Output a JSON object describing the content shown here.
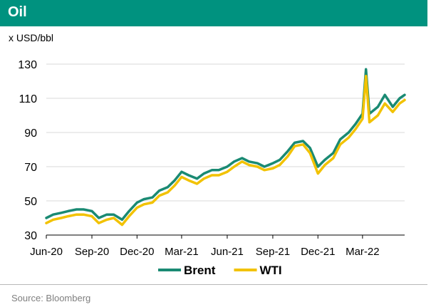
{
  "header": {
    "title": "Oil"
  },
  "unit_label": "x USD/bbl",
  "source": "Source: Bloomberg",
  "colors": {
    "header_bg": "#00927f",
    "brent": "#1a8a73",
    "wti": "#f2c200"
  },
  "chart_data": {
    "type": "line",
    "title": "Oil",
    "ylabel": "x USD/bbl",
    "xlabel": "",
    "ylim": [
      30,
      130
    ],
    "yticks": [
      30,
      50,
      70,
      90,
      110,
      130
    ],
    "xlim": [
      "2020-06-01",
      "2022-05-25"
    ],
    "xticks": [
      {
        "date": "2020-06-01",
        "label": "Jun-20"
      },
      {
        "date": "2020-09-01",
        "label": "Sep-20"
      },
      {
        "date": "2020-12-01",
        "label": "Dec-20"
      },
      {
        "date": "2021-03-01",
        "label": "Mar-21"
      },
      {
        "date": "2021-06-01",
        "label": "Jun-21"
      },
      {
        "date": "2021-09-01",
        "label": "Sep-21"
      },
      {
        "date": "2021-12-01",
        "label": "Dec-21"
      },
      {
        "date": "2022-03-01",
        "label": "Mar-22"
      }
    ],
    "grid": "horizontal",
    "legend_position": "bottom-center",
    "x": [
      "2020-06-01",
      "2020-06-15",
      "2020-07-01",
      "2020-07-15",
      "2020-08-01",
      "2020-08-15",
      "2020-09-01",
      "2020-09-15",
      "2020-10-01",
      "2020-10-15",
      "2020-11-01",
      "2020-11-15",
      "2020-12-01",
      "2020-12-15",
      "2021-01-01",
      "2021-01-15",
      "2021-02-01",
      "2021-02-15",
      "2021-03-01",
      "2021-03-15",
      "2021-04-01",
      "2021-04-15",
      "2021-05-01",
      "2021-05-15",
      "2021-06-01",
      "2021-06-15",
      "2021-07-01",
      "2021-07-15",
      "2021-08-01",
      "2021-08-15",
      "2021-09-01",
      "2021-09-15",
      "2021-10-01",
      "2021-10-15",
      "2021-11-01",
      "2021-11-15",
      "2021-12-01",
      "2021-12-15",
      "2022-01-01",
      "2022-01-15",
      "2022-02-01",
      "2022-02-15",
      "2022-03-01",
      "2022-03-08",
      "2022-03-15",
      "2022-04-01",
      "2022-04-15",
      "2022-05-01",
      "2022-05-15",
      "2022-05-25"
    ],
    "series": [
      {
        "name": "Brent",
        "values": [
          40,
          42,
          43,
          44,
          45,
          45,
          44,
          40,
          42,
          42,
          39,
          44,
          49,
          51,
          52,
          56,
          58,
          62,
          67,
          65,
          63,
          66,
          68,
          68,
          70,
          73,
          75,
          73,
          72,
          70,
          72,
          74,
          79,
          84,
          85,
          81,
          70,
          74,
          78,
          86,
          90,
          95,
          101,
          127,
          101,
          105,
          112,
          105,
          110,
          112
        ]
      },
      {
        "name": "WTI",
        "values": [
          37,
          39,
          40,
          41,
          42,
          42,
          41,
          37,
          39,
          40,
          36,
          41,
          46,
          48,
          49,
          53,
          55,
          59,
          64,
          62,
          60,
          63,
          65,
          65,
          67,
          70,
          73,
          71,
          70,
          68,
          69,
          71,
          76,
          82,
          83,
          78,
          66,
          71,
          75,
          83,
          87,
          92,
          98,
          123,
          96,
          100,
          107,
          102,
          107,
          109
        ]
      }
    ]
  }
}
